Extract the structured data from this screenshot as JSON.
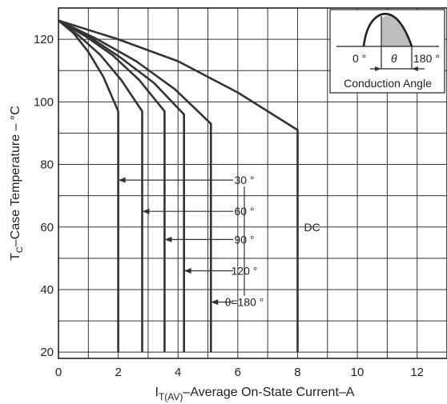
{
  "chart_data": {
    "type": "line",
    "title": "",
    "ylabel": "T",
    "ylabel_sub": "C",
    "ylabel_rest": "–Case Temperature – °C",
    "xlabel": "I",
    "xlabel_sub": "T(AV)",
    "xlabel_rest": "–Average On-State Current–A",
    "xlim": [
      0,
      13
    ],
    "ylim": [
      18,
      130
    ],
    "xticks": [
      0,
      2,
      4,
      6,
      8,
      10,
      12
    ],
    "yticks": [
      20,
      40,
      60,
      80,
      100,
      120
    ],
    "grid": true,
    "series": [
      {
        "name": "30 °",
        "label_y": 75,
        "x": [
          0,
          0.5,
          1.0,
          1.5,
          2.0,
          2.0,
          2.0
        ],
        "y": [
          126,
          122,
          116,
          108,
          97,
          97,
          20
        ]
      },
      {
        "name": "60 °",
        "label_y": 65,
        "x": [
          0,
          0.7,
          1.4,
          2.1,
          2.8,
          2.8
        ],
        "y": [
          126,
          121,
          115,
          107,
          97,
          20
        ]
      },
      {
        "name": "90 °",
        "label_y": 56,
        "x": [
          0,
          0.9,
          1.8,
          2.7,
          3.55,
          3.55
        ],
        "y": [
          126,
          121,
          115,
          107,
          97,
          20
        ]
      },
      {
        "name": "120 °",
        "label_y": 46,
        "x": [
          0,
          1.0,
          2.1,
          3.2,
          4.2,
          4.2
        ],
        "y": [
          126,
          121,
          114,
          106,
          96,
          20
        ]
      },
      {
        "name": "θ=180 °",
        "label_y": 36,
        "x": [
          0,
          1.3,
          2.6,
          3.9,
          5.1,
          5.1
        ],
        "y": [
          126,
          120,
          113,
          104,
          93,
          20
        ]
      },
      {
        "name": "DC",
        "label_y": 60,
        "x": [
          0,
          2.0,
          4.0,
          6.0,
          8.0,
          8.0
        ],
        "y": [
          126,
          120,
          113,
          103,
          91,
          20
        ]
      }
    ],
    "inset": {
      "start_label": "0 °",
      "theta_label": "θ",
      "end_label": "180 °",
      "caption": "Conduction Angle"
    }
  }
}
